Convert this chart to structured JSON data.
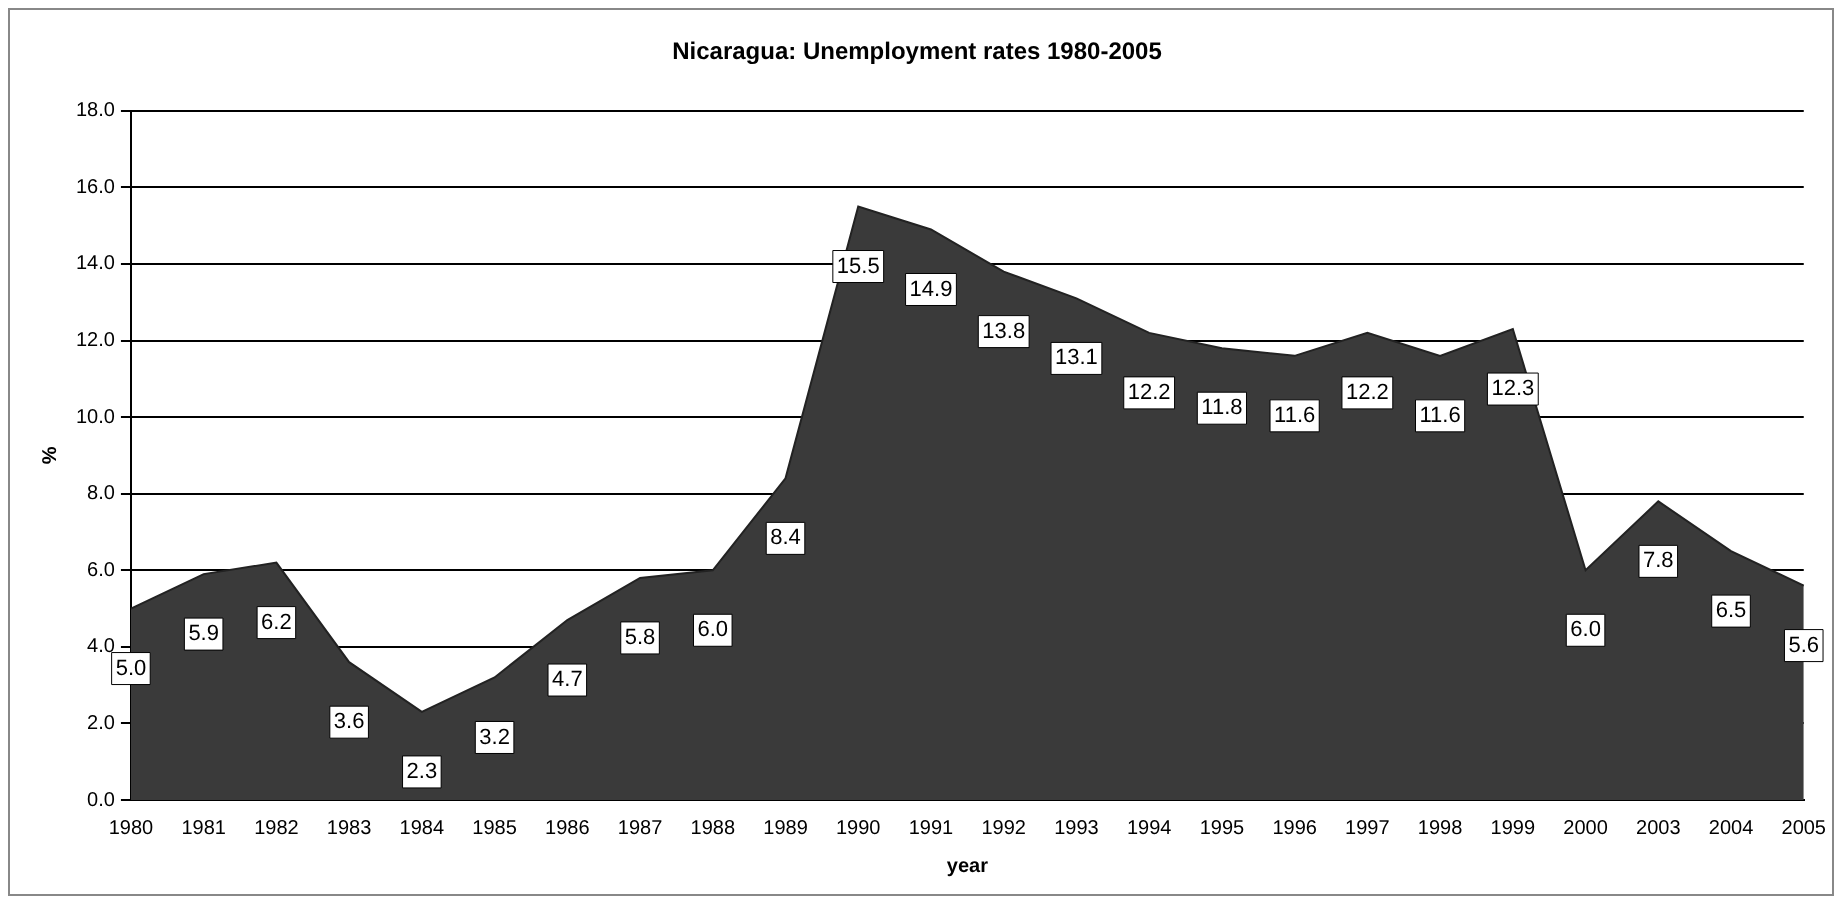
{
  "chart_data": {
    "type": "area",
    "title": "Nicaragua: Unemployment rates 1980-2005",
    "xlabel": "year",
    "ylabel": "%",
    "categories": [
      "1980",
      "1981",
      "1982",
      "1983",
      "1984",
      "1985",
      "1986",
      "1987",
      "1988",
      "1989",
      "1990",
      "1991",
      "1992",
      "1993",
      "1994",
      "1995",
      "1996",
      "1997",
      "1998",
      "1999",
      "2000",
      "2003",
      "2004",
      "2005"
    ],
    "values": [
      5.0,
      5.9,
      6.2,
      3.6,
      2.3,
      3.2,
      4.7,
      5.8,
      6.0,
      8.4,
      15.5,
      14.9,
      13.8,
      13.1,
      12.2,
      11.8,
      11.6,
      12.2,
      11.6,
      12.3,
      6.0,
      7.8,
      6.5,
      5.6
    ],
    "color": "#3a3a3a",
    "ylim": [
      0,
      18
    ],
    "yticks": [
      {
        "value": 0,
        "label": "0.0"
      },
      {
        "value": 2,
        "label": "2.0"
      },
      {
        "value": 4,
        "label": "4.0"
      },
      {
        "value": 6,
        "label": "6.0"
      },
      {
        "value": 8,
        "label": "8.0"
      },
      {
        "value": 10,
        "label": "10.0"
      },
      {
        "value": 12,
        "label": "12.0"
      },
      {
        "value": 14,
        "label": "14.0"
      },
      {
        "value": 16,
        "label": "16.0"
      },
      {
        "value": 18,
        "label": "18.0"
      }
    ],
    "value_labels": [
      "5.0",
      "5.9",
      "6.2",
      "3.6",
      "2.3",
      "3.2",
      "4.7",
      "5.8",
      "6.0",
      "8.4",
      "15.5",
      "14.9",
      "13.8",
      "13.1",
      "12.2",
      "11.8",
      "11.6",
      "12.2",
      "11.6",
      "12.3",
      "6.0",
      "7.8",
      "6.5",
      "5.6"
    ],
    "grid": "y",
    "legend": false
  }
}
